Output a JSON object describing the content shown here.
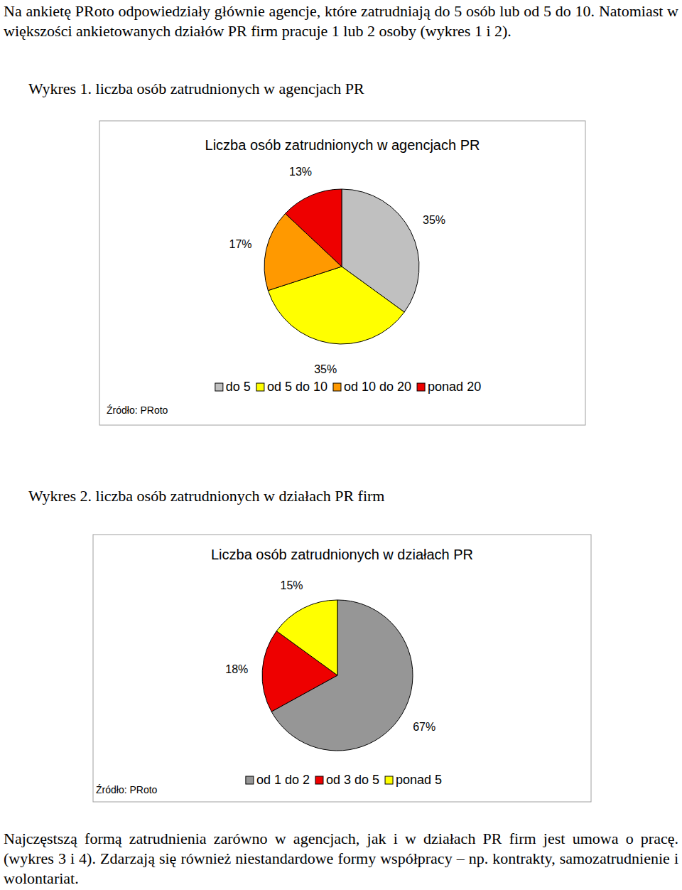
{
  "intro": "Na ankietę PRoto odpowiedziały głównie agencje, które zatrudniają do 5 osób lub od 5 do 10. Natomiast w większości ankietowanych działów PR firm pracuje 1 lub 2 osoby (wykres 1 i 2).",
  "captions": [
    "Wykres 1. liczba osób zatrudnionych w agencjach PR",
    "Wykres 2. liczba osób zatrudnionych w działach PR firm"
  ],
  "chart_data": [
    {
      "type": "pie",
      "title": "Liczba osób zatrudnionych w agencjach PR",
      "source": "Źródło: PRoto",
      "categories": [
        "do 5",
        "od 5 do 10",
        "od 10 do 20",
        "ponad 20"
      ],
      "values": [
        35,
        35,
        17,
        13
      ],
      "value_labels": [
        "35%",
        "35%",
        "17%",
        "13%"
      ],
      "colors": [
        "#c0c0c0",
        "#ffff00",
        "#ff9900",
        "#ee0000"
      ],
      "data_labels": true,
      "legend": "bottom"
    },
    {
      "type": "pie",
      "title": "Liczba osób zatrudnionych w działach PR",
      "source": "Źródło: PRoto",
      "categories": [
        "od 1 do 2",
        "od 3 do 5",
        "ponad 5"
      ],
      "values": [
        67,
        18,
        15
      ],
      "value_labels": [
        "67%",
        "18%",
        "15%"
      ],
      "colors": [
        "#969696",
        "#ee0000",
        "#ffff00"
      ],
      "data_labels": true,
      "legend": "bottom"
    }
  ],
  "outro": "Najczęstszą formą zatrudnienia zarówno w agencjach, jak i w działach PR firm jest umowa o pracę. (wykres 3 i 4). Zdarzają się również niestandardowe formy współpracy – np. kontrakty, samozatrudnienie i wolontariat."
}
